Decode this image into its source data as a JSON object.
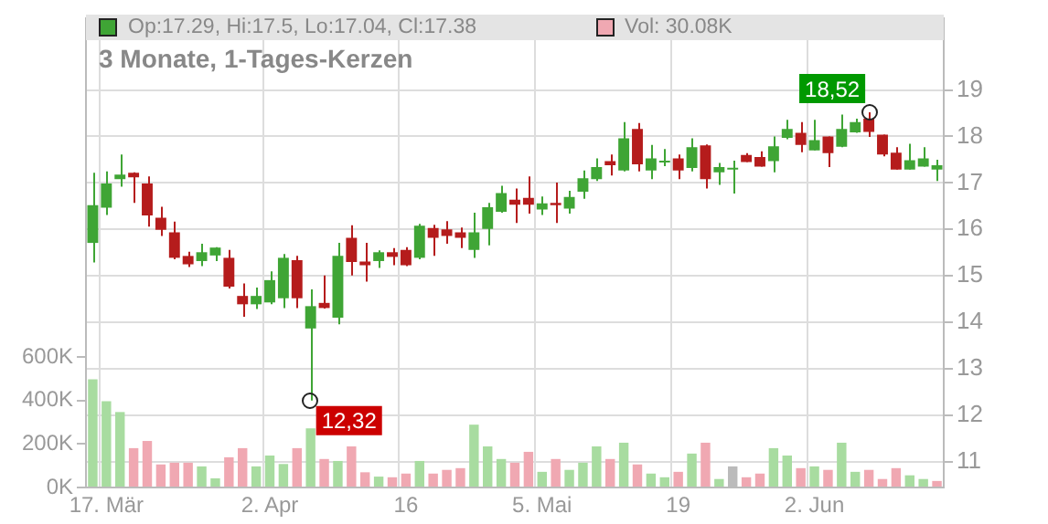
{
  "chart_data": {
    "type": "candlestick",
    "title": "3 Monate, 1-Tages-Kerzen",
    "categories": [
      null,
      "17. Mär",
      null,
      null,
      null,
      null,
      null,
      null,
      null,
      null,
      null,
      null,
      null,
      "2. Apr",
      null,
      null,
      null,
      null,
      null,
      null,
      null,
      null,
      null,
      "16",
      null,
      null,
      null,
      null,
      null,
      null,
      null,
      null,
      null,
      "5. Mai",
      null,
      null,
      null,
      null,
      null,
      null,
      null,
      null,
      null,
      "19",
      null,
      null,
      null,
      null,
      null,
      null,
      null,
      null,
      null,
      "2. Jun",
      null,
      null,
      null,
      null,
      null,
      null,
      null,
      null,
      null
    ],
    "series": [
      {
        "name": "Op:17.29, Hi:17.5, Lo:17.04, Cl:17.38",
        "axis": "y2",
        "color": "#3fa535",
        "ohlc": [
          [
            15.71,
            17.22,
            15.29,
            16.52
          ],
          [
            16.47,
            17.25,
            16.31,
            16.99
          ],
          [
            17.08,
            17.61,
            16.92,
            17.18
          ],
          [
            17.22,
            17.23,
            16.57,
            17.12
          ],
          [
            16.99,
            17.14,
            16.06,
            16.3
          ],
          [
            16.25,
            16.49,
            15.86,
            15.99
          ],
          [
            15.94,
            16.17,
            15.36,
            15.39
          ],
          [
            15.43,
            15.52,
            15.19,
            15.25
          ],
          [
            15.32,
            15.69,
            15.21,
            15.51
          ],
          [
            15.44,
            15.62,
            15.32,
            15.61
          ],
          [
            15.39,
            15.56,
            14.73,
            14.77
          ],
          [
            14.57,
            14.84,
            14.12,
            14.39
          ],
          [
            14.39,
            14.75,
            14.29,
            14.57
          ],
          [
            14.43,
            15.1,
            14.39,
            14.91
          ],
          [
            14.52,
            15.47,
            14.31,
            15.39
          ],
          [
            15.34,
            15.43,
            14.31,
            14.52
          ],
          [
            13.87,
            14.71,
            12.32,
            14.35
          ],
          [
            14.42,
            15.01,
            14.3,
            14.31
          ],
          [
            14.1,
            15.71,
            13.96,
            15.43
          ],
          [
            15.82,
            16.09,
            15.01,
            15.3
          ],
          [
            15.31,
            15.71,
            14.88,
            15.23
          ],
          [
            15.32,
            15.55,
            15.17,
            15.51
          ],
          [
            15.51,
            15.6,
            15.23,
            15.41
          ],
          [
            15.56,
            15.62,
            15.21,
            15.23
          ],
          [
            15.39,
            16.12,
            15.36,
            16.08
          ],
          [
            16.03,
            16.1,
            15.43,
            15.82
          ],
          [
            16.0,
            16.18,
            15.69,
            15.86
          ],
          [
            15.94,
            16.04,
            15.6,
            15.82
          ],
          [
            15.56,
            16.36,
            15.39,
            15.94
          ],
          [
            16.01,
            16.57,
            15.66,
            16.48
          ],
          [
            16.38,
            16.94,
            16.36,
            16.78
          ],
          [
            16.64,
            16.88,
            16.14,
            16.53
          ],
          [
            16.68,
            17.14,
            16.34,
            16.53
          ],
          [
            16.43,
            16.71,
            16.31,
            16.56
          ],
          [
            16.57,
            17.01,
            16.14,
            16.52
          ],
          [
            16.45,
            16.83,
            16.34,
            16.7
          ],
          [
            16.81,
            17.27,
            16.66,
            17.1
          ],
          [
            17.08,
            17.53,
            17.04,
            17.34
          ],
          [
            17.47,
            17.61,
            17.16,
            17.38
          ],
          [
            17.27,
            18.31,
            17.25,
            17.96
          ],
          [
            18.16,
            18.29,
            17.25,
            17.4
          ],
          [
            17.27,
            17.82,
            17.08,
            17.53
          ],
          [
            17.44,
            17.73,
            17.36,
            17.46
          ],
          [
            17.53,
            17.61,
            17.08,
            17.27
          ],
          [
            17.32,
            17.96,
            17.25,
            17.77
          ],
          [
            17.81,
            17.83,
            16.88,
            17.08
          ],
          [
            17.23,
            17.43,
            16.96,
            17.34
          ],
          [
            17.29,
            17.48,
            16.77,
            17.31
          ],
          [
            17.6,
            17.64,
            17.45,
            17.45
          ],
          [
            17.56,
            17.68,
            17.35,
            17.35
          ],
          [
            17.47,
            18.0,
            17.23,
            17.79
          ],
          [
            17.97,
            18.36,
            17.94,
            18.16
          ],
          [
            18.08,
            18.31,
            17.66,
            17.82
          ],
          [
            17.7,
            18.36,
            17.7,
            17.92
          ],
          [
            18.0,
            18.0,
            17.34,
            17.64
          ],
          [
            17.78,
            18.47,
            17.77,
            18.16
          ],
          [
            18.09,
            18.38,
            18.08,
            18.31
          ],
          [
            18.38,
            18.52,
            17.99,
            18.1
          ],
          [
            18.04,
            18.04,
            17.57,
            17.61
          ],
          [
            17.65,
            17.77,
            17.29,
            17.29
          ],
          [
            17.29,
            17.84,
            17.29,
            17.49
          ],
          [
            17.35,
            17.77,
            17.35,
            17.53
          ],
          [
            17.29,
            17.5,
            17.04,
            17.38
          ]
        ],
        "colors": [
          "#3fa535",
          "#3fa535",
          "#3fa535",
          "#b51c1c",
          "#b51c1c",
          "#b51c1c",
          "#b51c1c",
          "#b51c1c",
          "#3fa535",
          "#3fa535",
          "#b51c1c",
          "#b51c1c",
          "#3fa535",
          "#3fa535",
          "#3fa535",
          "#b51c1c",
          "#3fa535",
          "#b51c1c",
          "#3fa535",
          "#b51c1c",
          "#b51c1c",
          "#3fa535",
          "#b51c1c",
          "#b51c1c",
          "#3fa535",
          "#b51c1c",
          "#b51c1c",
          "#b51c1c",
          "#3fa535",
          "#3fa535",
          "#3fa535",
          "#b51c1c",
          "#b51c1c",
          "#3fa535",
          "#b51c1c",
          "#3fa535",
          "#3fa535",
          "#3fa535",
          "#b51c1c",
          "#3fa535",
          "#b51c1c",
          "#3fa535",
          "#3fa535",
          "#b51c1c",
          "#3fa535",
          "#b51c1c",
          "#3fa535",
          "#3fa535",
          "#b51c1c",
          "#b51c1c",
          "#3fa535",
          "#3fa535",
          "#b51c1c",
          "#3fa535",
          "#b51c1c",
          "#3fa535",
          "#3fa535",
          "#b51c1c",
          "#b51c1c",
          "#b51c1c",
          "#3fa535",
          "#3fa535",
          "#3fa535"
        ]
      },
      {
        "name": "Vol: 30.08K",
        "type": "bar",
        "color": "#f0a8b2",
        "values": [
          498,
          397,
          347,
          181,
          214,
          106,
          114,
          114,
          97,
          42,
          139,
          181,
          97,
          147,
          108,
          181,
          272,
          131,
          122,
          189,
          70,
          50,
          47,
          64,
          122,
          64,
          81,
          89,
          289,
          189,
          131,
          114,
          164,
          72,
          131,
          81,
          114,
          189,
          131,
          206,
          106,
          64,
          47,
          72,
          156,
          206,
          39,
          97,
          47,
          64,
          181,
          147,
          89,
          97,
          81,
          206,
          72,
          81,
          39,
          89,
          56,
          39,
          30
        ],
        "colors": [
          "#a8dca0",
          "#a8dca0",
          "#a8dca0",
          "#f0a8b2",
          "#f0a8b2",
          "#f0a8b2",
          "#f0a8b2",
          "#f0a8b2",
          "#a8dca0",
          "#a8dca0",
          "#f0a8b2",
          "#f0a8b2",
          "#a8dca0",
          "#a8dca0",
          "#a8dca0",
          "#f0a8b2",
          "#a8dca0",
          "#f0a8b2",
          "#a8dca0",
          "#f0a8b2",
          "#f0a8b2",
          "#a8dca0",
          "#f0a8b2",
          "#f0a8b2",
          "#a8dca0",
          "#f0a8b2",
          "#f0a8b2",
          "#f0a8b2",
          "#a8dca0",
          "#a8dca0",
          "#a8dca0",
          "#f0a8b2",
          "#f0a8b2",
          "#a8dca0",
          "#f0a8b2",
          "#a8dca0",
          "#a8dca0",
          "#a8dca0",
          "#f0a8b2",
          "#a8dca0",
          "#f0a8b2",
          "#a8dca0",
          "#a8dca0",
          "#f0a8b2",
          "#a8dca0",
          "#f0a8b2",
          "#a8dca0",
          "#bbbbbb",
          "#f0a8b2",
          "#f0a8b2",
          "#a8dca0",
          "#a8dca0",
          "#f0a8b2",
          "#a8dca0",
          "#f0a8b2",
          "#a8dca0",
          "#a8dca0",
          "#f0a8b2",
          "#f0a8b2",
          "#f0a8b2",
          "#a8dca0",
          "#a8dca0",
          "#f0a8b2"
        ]
      }
    ],
    "y2lim": [
      10.45,
      20.55
    ],
    "y2ticks": [
      11,
      12,
      13,
      14,
      15,
      16,
      17,
      18,
      19
    ],
    "ylim": [
      0,
      2160
    ],
    "yticks": [
      {
        "value": 0,
        "label": "0K"
      },
      {
        "value": 200,
        "label": "200K"
      },
      {
        "value": 400,
        "label": "400K"
      },
      {
        "value": 600,
        "label": "600K"
      }
    ],
    "annotations": [
      "12,32",
      "18,52"
    ],
    "grid": true,
    "legend": "top left"
  }
}
